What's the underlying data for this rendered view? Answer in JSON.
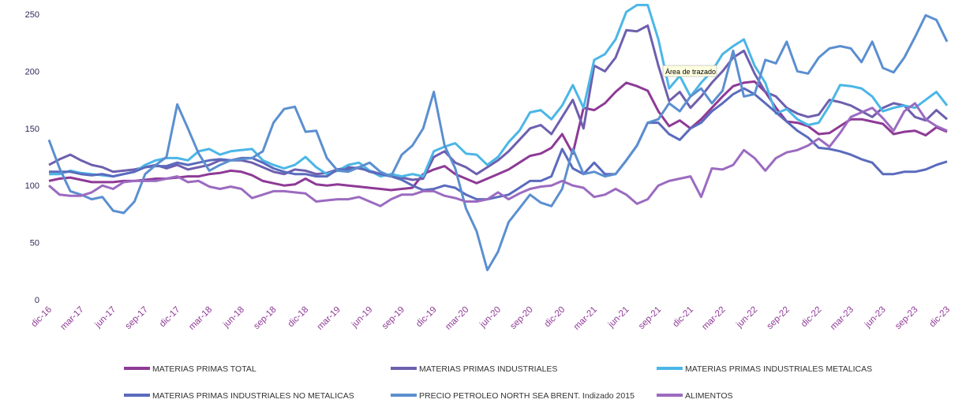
{
  "chart_data": {
    "type": "line",
    "categories": [
      "dic-16",
      null,
      null,
      "mar-17",
      null,
      null,
      "jun-17",
      null,
      null,
      "sep-17",
      null,
      null,
      "dic-17",
      null,
      null,
      "mar-18",
      null,
      null,
      "jun-18",
      null,
      null,
      "sep-18",
      null,
      null,
      "dic-18",
      null,
      null,
      "mar-19",
      null,
      null,
      "jun-19",
      null,
      null,
      "sep-19",
      null,
      null,
      "dic-19",
      null,
      null,
      "mar-20",
      null,
      null,
      "jun-20",
      null,
      null,
      "sep-20",
      null,
      null,
      "dic-20",
      null,
      null,
      "mar-21",
      null,
      null,
      "jun-21",
      null,
      null,
      "sep-21",
      null,
      null,
      "dic-21",
      null,
      null,
      "mar-22",
      null,
      null,
      "jun-22",
      null,
      null,
      "sep-22",
      null,
      null,
      "dic-22",
      null,
      null,
      "mar-23",
      null,
      null,
      "jun-23",
      null,
      null,
      "sep-23",
      null,
      null,
      "dic-23"
    ],
    "series": [
      {
        "name": "MATERIAS PRIMAS TOTAL",
        "color": "#8e3a96",
        "values": [
          104,
          106,
          107,
          105,
          103,
          103,
          103,
          104,
          104,
          105,
          106,
          106,
          107,
          108,
          108,
          110,
          111,
          113,
          112,
          109,
          104,
          102,
          100,
          101,
          106,
          101,
          100,
          101,
          100,
          99,
          98,
          97,
          96,
          97,
          98,
          110,
          114,
          117,
          110,
          106,
          102,
          106,
          110,
          114,
          120,
          126,
          128,
          133,
          145,
          128,
          168,
          166,
          172,
          182,
          190,
          187,
          183,
          165,
          152,
          157,
          150,
          158,
          168,
          178,
          187,
          190,
          191,
          182,
          168,
          156,
          155,
          152,
          145,
          146,
          152,
          158,
          158,
          156,
          154,
          145,
          147,
          148,
          144,
          151,
          147
        ]
      },
      {
        "name": "MATERIAS PRIMAS INDUSTRIALES",
        "color": "#6e5fae",
        "values": [
          118,
          123,
          127,
          122,
          118,
          116,
          112,
          113,
          114,
          116,
          118,
          115,
          118,
          114,
          116,
          118,
          122,
          122,
          122,
          120,
          116,
          112,
          110,
          114,
          113,
          110,
          111,
          114,
          116,
          115,
          113,
          110,
          108,
          107,
          105,
          106,
          125,
          130,
          120,
          116,
          110,
          116,
          122,
          130,
          140,
          150,
          153,
          145,
          160,
          175,
          150,
          205,
          200,
          212,
          236,
          235,
          240,
          205,
          174,
          182,
          168,
          178,
          190,
          200,
          212,
          218,
          198,
          182,
          178,
          168,
          163,
          160,
          162,
          175,
          173,
          170,
          165,
          160,
          168,
          172,
          170,
          160,
          157,
          166,
          158
        ]
      },
      {
        "name": "MATERIAS PRIMAS INDUSTRIALES METALICAS",
        "color": "#4bb6e6",
        "values": [
          110,
          110,
          113,
          111,
          110,
          109,
          108,
          110,
          112,
          118,
          122,
          124,
          124,
          122,
          130,
          132,
          127,
          130,
          131,
          132,
          122,
          118,
          115,
          118,
          125,
          116,
          110,
          113,
          118,
          120,
          113,
          108,
          110,
          108,
          110,
          108,
          130,
          134,
          137,
          128,
          127,
          118,
          125,
          138,
          148,
          164,
          166,
          158,
          170,
          188,
          168,
          210,
          215,
          228,
          252,
          258,
          258,
          228,
          185,
          196,
          178,
          190,
          200,
          215,
          222,
          228,
          205,
          190,
          163,
          167,
          158,
          153,
          155,
          170,
          188,
          187,
          185,
          178,
          165,
          168,
          170,
          168,
          175,
          182,
          170
        ]
      },
      {
        "name": "MATERIAS PRIMAS INDUSTRIALES NO METALICAS",
        "color": "#5a6bbd",
        "values": [
          112,
          112,
          112,
          110,
          109,
          110,
          108,
          110,
          112,
          116,
          117,
          117,
          120,
          118,
          120,
          122,
          123,
          122,
          124,
          124,
          120,
          115,
          112,
          110,
          110,
          108,
          108,
          114,
          114,
          116,
          112,
          110,
          108,
          105,
          100,
          96,
          97,
          100,
          98,
          92,
          88,
          88,
          90,
          92,
          98,
          104,
          104,
          108,
          132,
          115,
          110,
          120,
          110,
          110,
          122,
          135,
          155,
          155,
          145,
          140,
          150,
          155,
          165,
          172,
          180,
          185,
          180,
          172,
          164,
          156,
          148,
          142,
          133,
          132,
          130,
          127,
          123,
          120,
          110,
          110,
          112,
          112,
          114,
          118,
          121
        ]
      },
      {
        "name": "PRECIO PETROLEO NORTH SEA BRENT. Indizado 2015",
        "color": "#5b8fd0",
        "values": [
          140,
          115,
          95,
          92,
          88,
          90,
          78,
          76,
          86,
          110,
          118,
          125,
          171,
          150,
          128,
          113,
          118,
          122,
          123,
          124,
          130,
          155,
          167,
          169,
          147,
          148,
          124,
          113,
          112,
          116,
          120,
          112,
          108,
          127,
          135,
          150,
          182,
          135,
          115,
          80,
          60,
          26,
          42,
          68,
          80,
          92,
          85,
          82,
          97,
          132,
          110,
          112,
          108,
          110,
          122,
          135,
          155,
          158,
          172,
          165,
          178,
          185,
          172,
          183,
          218,
          178,
          180,
          210,
          207,
          226,
          200,
          198,
          212,
          220,
          222,
          220,
          208,
          226,
          203,
          199,
          212,
          230,
          249,
          245,
          226
        ]
      },
      {
        "name": "ALIMENTOS",
        "color": "#9b6bc0",
        "values": [
          100,
          92,
          91,
          91,
          94,
          100,
          97,
          103,
          104,
          104,
          104,
          106,
          108,
          103,
          104,
          99,
          97,
          99,
          97,
          89,
          92,
          95,
          95,
          94,
          93,
          86,
          87,
          88,
          88,
          90,
          86,
          82,
          88,
          92,
          92,
          95,
          95,
          91,
          89,
          86,
          86,
          88,
          94,
          88,
          93,
          97,
          99,
          100,
          104,
          100,
          98,
          90,
          92,
          97,
          92,
          84,
          88,
          100,
          104,
          106,
          108,
          90,
          115,
          114,
          118,
          131,
          124,
          113,
          124,
          129,
          131,
          135,
          141,
          134,
          146,
          160,
          164,
          168,
          159,
          148,
          165,
          172,
          158,
          152,
          148
        ]
      }
    ],
    "ylim": [
      0,
      250
    ],
    "yticks": [
      0,
      50,
      100,
      150,
      200,
      250
    ],
    "annotation": "Área de trazado",
    "legend": "bottom"
  }
}
